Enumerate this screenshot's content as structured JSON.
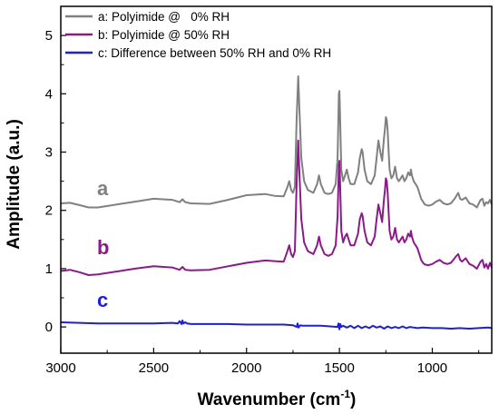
{
  "chart_data": {
    "type": "line",
    "xlabel_main": "Wavenumber (cm",
    "xlabel_sup": "-1",
    "xlabel_tail": ")",
    "ylabel": "Amplitude (a.u.)",
    "xlim": [
      3000,
      680
    ],
    "ylim": [
      -0.45,
      5.5
    ],
    "x_reversed": true,
    "x_ticks": [
      3000,
      2500,
      2000,
      1500,
      1000
    ],
    "y_ticks": [
      0,
      1,
      2,
      3,
      4,
      5
    ],
    "legend_position": "top-left",
    "series": [
      {
        "key": "a",
        "name": "a: Polyimide @   0% RH",
        "color": "#808080",
        "curve_label": "a",
        "x": [
          3000,
          2950,
          2900,
          2850,
          2800,
          2700,
          2600,
          2500,
          2400,
          2360,
          2345,
          2330,
          2300,
          2200,
          2100,
          2000,
          1900,
          1850,
          1800,
          1780,
          1770,
          1760,
          1750,
          1740,
          1730,
          1722,
          1715,
          1705,
          1690,
          1670,
          1640,
          1620,
          1610,
          1600,
          1580,
          1560,
          1540,
          1520,
          1510,
          1503,
          1500,
          1497,
          1490,
          1480,
          1470,
          1460,
          1450,
          1440,
          1420,
          1400,
          1390,
          1380,
          1375,
          1365,
          1350,
          1330,
          1310,
          1300,
          1290,
          1280,
          1270,
          1265,
          1260,
          1255,
          1250,
          1245,
          1240,
          1235,
          1230,
          1220,
          1210,
          1200,
          1190,
          1180,
          1170,
          1160,
          1150,
          1140,
          1130,
          1120,
          1115,
          1110,
          1105,
          1100,
          1090,
          1080,
          1070,
          1060,
          1050,
          1040,
          1020,
          1000,
          980,
          960,
          940,
          920,
          900,
          880,
          870,
          860,
          850,
          840,
          820,
          800,
          780,
          760,
          740,
          730,
          720,
          710,
          700,
          690,
          680
        ],
        "y": [
          2.12,
          2.13,
          2.09,
          2.05,
          2.05,
          2.1,
          2.15,
          2.2,
          2.18,
          2.14,
          2.19,
          2.14,
          2.12,
          2.11,
          2.18,
          2.26,
          2.28,
          2.25,
          2.24,
          2.4,
          2.5,
          2.35,
          2.3,
          2.4,
          3.6,
          4.3,
          3.7,
          2.9,
          2.5,
          2.35,
          2.3,
          2.45,
          2.6,
          2.45,
          2.3,
          2.28,
          2.3,
          2.45,
          2.9,
          4.0,
          4.05,
          3.7,
          2.7,
          2.5,
          2.6,
          2.7,
          2.55,
          2.45,
          2.45,
          2.65,
          2.9,
          3.05,
          3.0,
          2.7,
          2.5,
          2.45,
          2.6,
          2.9,
          3.2,
          3.0,
          2.85,
          3.05,
          3.25,
          3.4,
          3.6,
          3.55,
          3.35,
          3.0,
          2.7,
          2.55,
          2.6,
          2.75,
          2.55,
          2.5,
          2.55,
          2.6,
          2.5,
          2.55,
          2.65,
          2.6,
          2.7,
          2.6,
          2.55,
          2.5,
          2.45,
          2.4,
          2.3,
          2.2,
          2.15,
          2.1,
          2.08,
          2.1,
          2.15,
          2.18,
          2.12,
          2.1,
          2.12,
          2.2,
          2.25,
          2.3,
          2.2,
          2.18,
          2.22,
          2.12,
          2.1,
          2.05,
          2.18,
          2.2,
          2.08,
          2.14,
          2.12,
          2.18,
          2.1
        ]
      },
      {
        "key": "b",
        "name": "b: Polyimide @ 50% RH",
        "color": "#8b1a89",
        "curve_label": "b",
        "x": [
          3000,
          2950,
          2900,
          2850,
          2800,
          2700,
          2600,
          2500,
          2400,
          2360,
          2345,
          2330,
          2300,
          2200,
          2100,
          2000,
          1900,
          1850,
          1800,
          1780,
          1770,
          1760,
          1750,
          1740,
          1730,
          1722,
          1715,
          1705,
          1690,
          1670,
          1640,
          1620,
          1610,
          1600,
          1580,
          1560,
          1540,
          1520,
          1510,
          1503,
          1500,
          1497,
          1490,
          1480,
          1470,
          1460,
          1450,
          1440,
          1420,
          1400,
          1390,
          1380,
          1375,
          1365,
          1350,
          1330,
          1310,
          1300,
          1290,
          1280,
          1270,
          1265,
          1260,
          1255,
          1250,
          1245,
          1240,
          1235,
          1230,
          1220,
          1210,
          1200,
          1190,
          1180,
          1170,
          1160,
          1150,
          1140,
          1130,
          1120,
          1115,
          1110,
          1105,
          1100,
          1090,
          1080,
          1070,
          1060,
          1050,
          1040,
          1020,
          1000,
          980,
          960,
          940,
          920,
          900,
          880,
          870,
          860,
          850,
          840,
          820,
          800,
          780,
          760,
          740,
          730,
          720,
          710,
          700,
          690,
          680
        ],
        "y": [
          0.96,
          0.98,
          0.94,
          0.89,
          0.9,
          0.95,
          1.0,
          1.04,
          1.02,
          0.98,
          1.03,
          0.98,
          0.97,
          0.98,
          1.04,
          1.1,
          1.14,
          1.13,
          1.12,
          1.3,
          1.4,
          1.25,
          1.2,
          1.3,
          2.5,
          3.2,
          2.6,
          1.85,
          1.45,
          1.3,
          1.25,
          1.4,
          1.55,
          1.4,
          1.25,
          1.22,
          1.25,
          1.4,
          1.9,
          2.78,
          2.85,
          2.55,
          1.65,
          1.45,
          1.55,
          1.6,
          1.5,
          1.4,
          1.4,
          1.6,
          1.85,
          1.95,
          1.9,
          1.65,
          1.45,
          1.4,
          1.55,
          1.85,
          2.1,
          1.95,
          1.8,
          2.0,
          2.2,
          2.35,
          2.55,
          2.5,
          2.3,
          1.95,
          1.65,
          1.5,
          1.55,
          1.7,
          1.5,
          1.45,
          1.5,
          1.55,
          1.45,
          1.5,
          1.6,
          1.55,
          1.65,
          1.55,
          1.5,
          1.45,
          1.4,
          1.35,
          1.25,
          1.15,
          1.1,
          1.07,
          1.06,
          1.08,
          1.12,
          1.15,
          1.1,
          1.08,
          1.1,
          1.18,
          1.22,
          1.25,
          1.15,
          1.12,
          1.18,
          1.08,
          1.05,
          1.0,
          1.12,
          1.15,
          1.02,
          1.08,
          1.0,
          1.1,
          1.02
        ]
      },
      {
        "key": "c",
        "name": "c: Difference between 50% RH and 0% RH",
        "color": "#1f1fd6",
        "curve_label": "c",
        "x": [
          3000,
          2900,
          2800,
          2700,
          2600,
          2500,
          2400,
          2370,
          2360,
          2350,
          2345,
          2340,
          2330,
          2320,
          2300,
          2200,
          2100,
          2000,
          1900,
          1800,
          1750,
          1730,
          1725,
          1720,
          1710,
          1700,
          1650,
          1600,
          1550,
          1510,
          1505,
          1500,
          1495,
          1490,
          1480,
          1460,
          1440,
          1420,
          1400,
          1380,
          1360,
          1340,
          1320,
          1300,
          1280,
          1260,
          1240,
          1220,
          1200,
          1180,
          1160,
          1140,
          1120,
          1100,
          1080,
          1050,
          1000,
          950,
          900,
          850,
          800,
          750,
          700,
          680
        ],
        "y": [
          0.08,
          0.07,
          0.06,
          0.06,
          0.06,
          0.06,
          0.07,
          0.06,
          0.1,
          0.05,
          0.11,
          0.06,
          0.08,
          0.06,
          0.05,
          0.05,
          0.05,
          0.04,
          0.04,
          0.04,
          0.03,
          0.0,
          0.06,
          -0.01,
          0.03,
          0.02,
          0.02,
          0.02,
          0.01,
          0.0,
          0.06,
          -0.04,
          0.05,
          0.0,
          0.02,
          -0.01,
          0.02,
          -0.02,
          0.02,
          -0.02,
          0.01,
          -0.02,
          0.02,
          -0.01,
          0.01,
          -0.03,
          0.01,
          -0.02,
          0.0,
          -0.02,
          0.01,
          -0.02,
          0.0,
          -0.01,
          -0.02,
          -0.01,
          -0.02,
          -0.02,
          -0.03,
          -0.02,
          -0.03,
          -0.02,
          -0.01,
          -0.02
        ]
      }
    ]
  }
}
